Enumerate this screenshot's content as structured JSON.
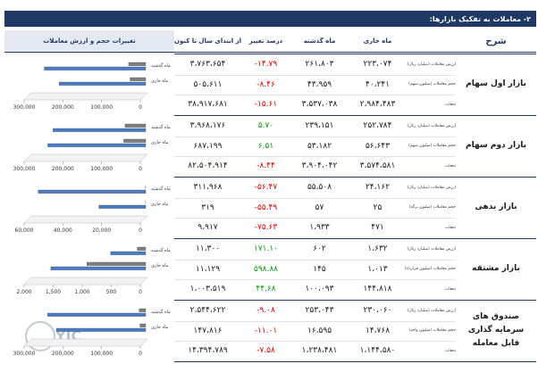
{
  "header": {
    "title": "۲- معاملات به تفکیک بازارها:"
  },
  "columns": [
    "شرح",
    "ماه جاری",
    "ماه گذشته",
    "درصد تغییر",
    "از ابتدای سال تا کنون",
    "تغییرات حجم و ارزش معاملات"
  ],
  "watermark": "YJC",
  "markets": [
    {
      "name": "بازار اول سهام",
      "rows": [
        {
          "label": "ارزش معاملات (میلیارد ریال)",
          "current": "۲۲۳،۰۷۴",
          "previous": "۲۶۱،۸۰۳",
          "change": "۱۴.۷۹-",
          "ytd": "۳،۷۶۳،۶۵۴"
        },
        {
          "label": "حجم معاملات (میلیون سهم)",
          "current": "۴۰،۲۴۱",
          "previous": "۴۳،۹۵۹",
          "change": "۸.۴۶-",
          "ytd": "۵۰۵،۶۱۱"
        },
        {
          "label": "دفعات",
          "current": "۲،۹۸۴،۴۸۳",
          "previous": "۳،۵۳۷،۰۳۸",
          "change": "۱۵.۶۱-",
          "ytd": "۳۸،۹۱۷،۶۸۱"
        }
      ],
      "chart": {
        "type": "bar",
        "categories": [
          "ماه گذشته",
          "ماه جاری"
        ],
        "series": [
          {
            "color": "#7f7f7f",
            "values": [
              43959,
              40241
            ]
          },
          {
            "color": "#4a7cc8",
            "values": [
              261803,
              223074
            ]
          }
        ],
        "xlim": [
          0,
          300000
        ],
        "xticks": [
          0,
          {
            "value": 100000,
            "label": "100,000"
          },
          {
            "value": 200000,
            "label": "200,000"
          },
          {
            "value": 300000,
            "label": "300,000"
          }
        ]
      }
    },
    {
      "name": "بازار دوم سهام",
      "rows": [
        {
          "label": "ارزش معاملات (میلیارد ریال)",
          "current": "۲۵۲،۷۸۴",
          "previous": "۲۳۹،۱۵۱",
          "change": "۵.۷۰",
          "ytd": "۳،۹۶۸،۱۷۶"
        },
        {
          "label": "حجم معاملات (میلیون سهم)",
          "current": "۵۶،۶۴۳",
          "previous": "۵۳،۱۸۲",
          "change": "۶.۵۱",
          "ytd": "۶۸۷،۱۹۹"
        },
        {
          "label": "دفعات",
          "current": "۳،۵۷۴،۵۸۱",
          "previous": "۳،۹۰۴،۰۴۲",
          "change": "۸.۴۴-",
          "ytd": "۸۲،۵۰۴،۹۱۴"
        }
      ],
      "chart": {
        "type": "bar",
        "categories": [
          "ماه گذشته",
          "ماه جاری"
        ],
        "series": [
          {
            "color": "#7f7f7f",
            "values": [
              53182,
              56643
            ]
          },
          {
            "color": "#4a7cc8",
            "values": [
              239151,
              252784
            ]
          }
        ],
        "xlim": [
          0,
          300000
        ],
        "xticks": [
          0,
          {
            "value": 100000,
            "label": "100,000"
          },
          {
            "value": 200000,
            "label": "200,000"
          },
          {
            "value": 300000,
            "label": "300,000"
          }
        ]
      }
    },
    {
      "name": "بازار بدهی",
      "rows": [
        {
          "label": "ارزش معاملات (میلیارد ریال)",
          "current": "۲۴،۱۶۲",
          "previous": "۵۵،۵۰۸",
          "change": "۵۶.۴۷-",
          "ytd": "۳۱۱،۹۶۸"
        },
        {
          "label": "حجم معاملات (میلیون برگه)",
          "current": "۲۵",
          "previous": "۵۷",
          "change": "۵۵.۴۹-",
          "ytd": "۳۱۹"
        },
        {
          "label": "دفعات",
          "current": "۴۷۱",
          "previous": "۱،۹۳۳",
          "change": "۷۵.۶۳-",
          "ytd": "۹،۹۱۷"
        }
      ],
      "chart": {
        "type": "bar",
        "categories": [
          "ماه گذشته",
          "ماه جاری"
        ],
        "series": [
          {
            "color": "#7f7f7f",
            "values": [
              57,
              25
            ]
          },
          {
            "color": "#4a7cc8",
            "values": [
              55508,
              24162
            ]
          }
        ],
        "xlim": [
          0,
          60000
        ],
        "xticks": [
          0,
          {
            "value": 20000,
            "label": "20,000"
          },
          {
            "value": 40000,
            "label": "40,000"
          },
          {
            "value": 60000,
            "label": "60,000"
          }
        ]
      }
    },
    {
      "name": "بازار مشتقه",
      "rows": [
        {
          "label": "ارزش معاملات (میلیارد ریال)",
          "current": "۱،۶۳۲",
          "previous": "۶۰۲",
          "change": "۱۷۱.۱۰",
          "ytd": "۱۱،۳۰۰"
        },
        {
          "label": "حجم معاملات (میلیون قرارداد)",
          "current": "۱،۰۱۳",
          "previous": "۱۴۵",
          "change": "۵۹۸.۸۸",
          "ytd": "۱۱،۱۲۹"
        },
        {
          "label": "دفعات",
          "current": "۱۴۴،۸۱۸",
          "previous": "۱۰۰،۰۹۳",
          "change": "۴۴.۶۸",
          "ytd": "۱،۰۰۳،۵۱۹"
        }
      ],
      "chart": {
        "type": "bar",
        "categories": [
          "ماه گذشته",
          "ماه جاری"
        ],
        "series": [
          {
            "color": "#7f7f7f",
            "values": [
              145,
              1013
            ]
          },
          {
            "color": "#4a7cc8",
            "values": [
              602,
              1632
            ]
          }
        ],
        "xlim": [
          0,
          2000
        ],
        "xticks": [
          0,
          500,
          {
            "value": 1000,
            "label": "1,000"
          },
          {
            "value": 1500,
            "label": "1,500"
          },
          {
            "value": 2000,
            "label": "2,000"
          }
        ]
      }
    },
    {
      "name": "صندوق های سرمایه گذاری قابل معامله",
      "rows": [
        {
          "label": "ارزش معاملات (میلیارد ریال)",
          "current": "۲۳۰،۰۶۰",
          "previous": "۲۵۳،۰۴۳",
          "change": "۹.۰۸-",
          "ytd": "۲،۵۴۴،۶۲۲"
        },
        {
          "label": "حجم معاملات (میلیون واحد)",
          "current": "۱۴،۷۶۸",
          "previous": "۱۶،۵۹۵",
          "change": "۱۱.۰۱-",
          "ytd": "۱۴۷،۸۱۶"
        },
        {
          "label": "دفعات",
          "current": "۱،۱۴۴،۵۸۰",
          "previous": "۱،۲۳۸،۴۸۱",
          "change": "۷.۵۸-",
          "ytd": "۱۴،۳۹۴،۷۸۹"
        }
      ],
      "chart": {
        "type": "bar",
        "categories": [
          "ماه گذشته",
          "ماه جاری"
        ],
        "series": [
          {
            "color": "#7f7f7f",
            "values": [
              16595,
              14768
            ]
          },
          {
            "color": "#4a7cc8",
            "values": [
              253043,
              230060
            ]
          }
        ],
        "xlim": [
          0,
          300000
        ],
        "xticks": [
          0,
          {
            "value": 100000,
            "label": "100,000"
          },
          {
            "value": 200000,
            "label": "200,000"
          },
          {
            "value": 300000,
            "label": "300,000"
          }
        ]
      }
    }
  ]
}
